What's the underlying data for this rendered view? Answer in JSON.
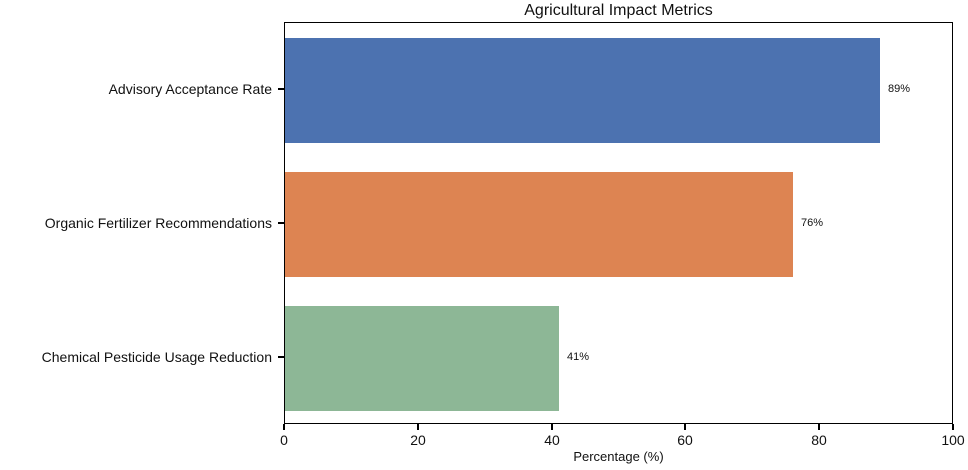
{
  "chart_data": {
    "type": "bar",
    "orientation": "horizontal",
    "title": "Agricultural Impact Metrics",
    "xlabel": "Percentage (%)",
    "ylabel": "",
    "categories": [
      "Advisory Acceptance Rate",
      "Organic Fertilizer Recommendations",
      "Chemical Pesticide Usage Reduction"
    ],
    "values": [
      89,
      76,
      41
    ],
    "value_labels": [
      "89%",
      "76%",
      "41%"
    ],
    "bar_colors": [
      "#4C72B0",
      "#DD8452",
      "#8DB796"
    ],
    "xlim": [
      0,
      100
    ],
    "xticks": [
      0,
      20,
      40,
      60,
      80,
      100
    ],
    "grid": false,
    "legend": null,
    "background_color": "#FFFFFF",
    "text_color": "#111111"
  }
}
